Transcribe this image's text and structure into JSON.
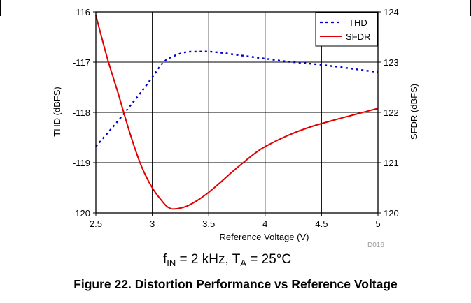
{
  "chart_data": {
    "type": "line",
    "title": "",
    "xlabel": "Reference Voltage (V)",
    "ylabel": "THD (dBFS)",
    "y2label": "SFDR (dBFS)",
    "xlim": [
      2.5,
      5
    ],
    "ylim": [
      -120,
      -116
    ],
    "y2lim": [
      120,
      124
    ],
    "x_ticks": [
      "2.5",
      "3",
      "3.5",
      "4",
      "4.5",
      "5"
    ],
    "y_ticks": [
      "-116",
      "-117",
      "-118",
      "-119",
      "-120"
    ],
    "y2_ticks": [
      "124",
      "123",
      "122",
      "121",
      "120"
    ],
    "grid": true,
    "legend_position": "top-right",
    "series": [
      {
        "name": "THD",
        "axis": "left",
        "color": "#0000cc",
        "style": "dotted",
        "x": [
          2.5,
          2.6,
          2.7,
          2.8,
          2.9,
          3.0,
          3.1,
          3.2,
          3.3,
          3.4,
          3.5,
          3.6,
          3.8,
          4.0,
          4.2,
          4.4,
          4.6,
          4.8,
          5.0
        ],
        "y": [
          -118.68,
          -118.42,
          -118.16,
          -117.88,
          -117.6,
          -117.3,
          -117.0,
          -116.87,
          -116.8,
          -116.79,
          -116.79,
          -116.81,
          -116.87,
          -116.93,
          -116.99,
          -117.03,
          -117.08,
          -117.14,
          -117.2
        ]
      },
      {
        "name": "SFDR",
        "axis": "right",
        "color": "#e00000",
        "style": "solid",
        "x": [
          2.5,
          2.6,
          2.7,
          2.8,
          2.9,
          3.0,
          3.1,
          3.15,
          3.2,
          3.3,
          3.4,
          3.5,
          3.6,
          3.7,
          3.8,
          3.9,
          4.0,
          4.2,
          4.4,
          4.6,
          4.8,
          5.0
        ],
        "y": [
          123.93,
          123.09,
          122.36,
          121.6,
          120.95,
          120.5,
          120.2,
          120.1,
          120.08,
          120.13,
          120.25,
          120.41,
          120.6,
          120.8,
          120.99,
          121.17,
          121.32,
          121.54,
          121.71,
          121.84,
          121.96,
          122.08
        ]
      }
    ],
    "annotations": {
      "code": "D016",
      "condition_prefix_f": "f",
      "condition_sub_in": "IN",
      "condition_mid": " = 2 kHz, T",
      "condition_sub_a": "A",
      "condition_suffix": " = 25°C"
    }
  },
  "caption": "Figure 22. Distortion Performance vs Reference Voltage",
  "colors": {
    "grid": "#000000",
    "thd": "#0000cc",
    "sfdr": "#e00000"
  }
}
